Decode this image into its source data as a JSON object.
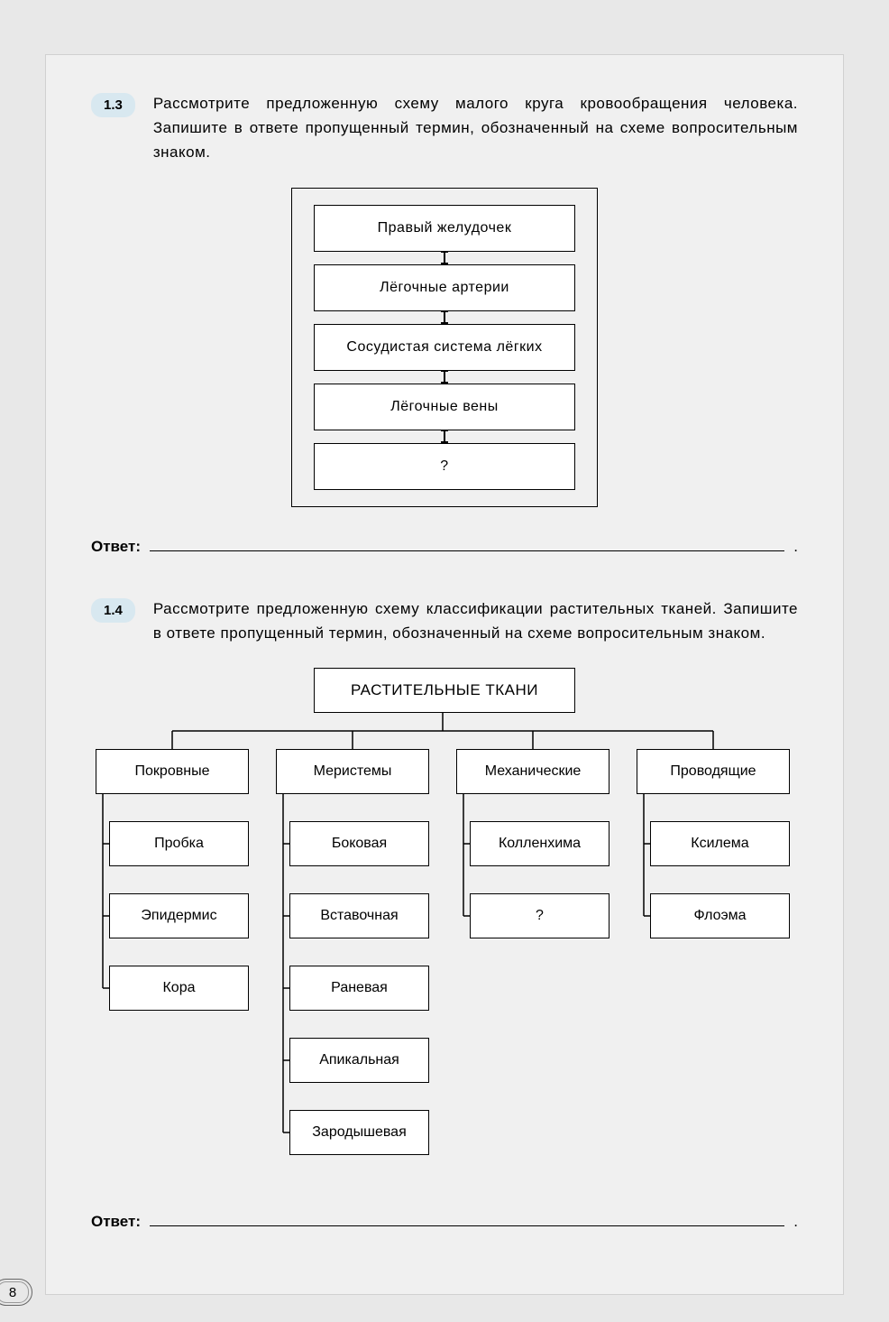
{
  "page_number": "8",
  "task_13": {
    "badge": "1.3",
    "text": "Рассмотрите предложенную схему малого круга кровообращения человека. Запишите в ответе пропущенный термин, обозначен­ный на схеме вопросительным знаком.",
    "flow_boxes": [
      "Правый  желудочек",
      "Лёгочные  артерии",
      "Сосудистая  система  лёгких",
      "Лёгочные  вены",
      "?"
    ],
    "answer_label": "Ответ:"
  },
  "task_14": {
    "badge": "1.4",
    "text": "Рассмотрите предложенную схему классификации растительных тканей. Запишите в ответе пропущенный термин, обозначенный на схеме вопросительным знаком.",
    "tree": {
      "root": "РАСТИТЕЛЬНЫЕ  ТКАНИ",
      "columns": [
        {
          "category": "Покровные",
          "subs": [
            "Пробка",
            "Эпидермис",
            "Кора"
          ]
        },
        {
          "category": "Меристемы",
          "subs": [
            "Боковая",
            "Вставочная",
            "Раневая",
            "Апикальная",
            "Зародышевая"
          ]
        },
        {
          "category": "Механические",
          "subs": [
            "Колленхима",
            "?"
          ]
        },
        {
          "category": "Проводящие",
          "subs": [
            "Ксилема",
            "Флоэма"
          ]
        }
      ]
    },
    "answer_label": "Ответ:"
  },
  "styling": {
    "page_bg": "#e8e8e8",
    "panel_bg": "#f0f0f0",
    "box_border": "#000000",
    "badge_bg": "#d8e8f0",
    "font_family": "Arial",
    "body_fontsize": 17,
    "box_fontsize": 16,
    "line_width": 1.5,
    "flowbox_w": 290,
    "flowbox_h": 52,
    "treebox_w": 170,
    "treebox_h": 50
  }
}
